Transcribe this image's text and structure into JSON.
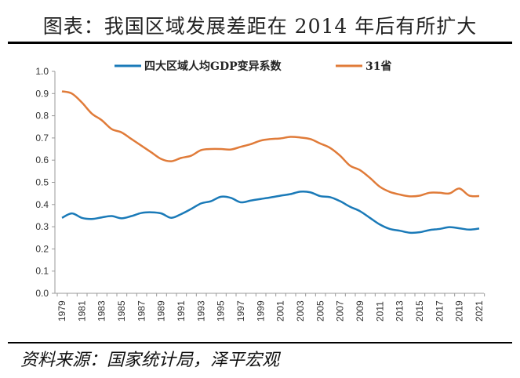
{
  "title": "图表：我国区域发展差距在 2014 年后有所扩大",
  "source": "资料来源：国家统计局，泽平宏观",
  "chart_data": {
    "type": "line",
    "title": "",
    "xlabel": "",
    "ylabel": "",
    "ylim": [
      0,
      1.0
    ],
    "yticks": [
      "0.0",
      "0.1",
      "0.2",
      "0.3",
      "0.4",
      "0.5",
      "0.6",
      "0.7",
      "0.8",
      "0.9",
      "1.0"
    ],
    "grid": false,
    "legend": "top",
    "x": [
      1979,
      1980,
      1981,
      1982,
      1983,
      1984,
      1985,
      1986,
      1987,
      1988,
      1989,
      1990,
      1991,
      1992,
      1993,
      1994,
      1995,
      1996,
      1997,
      1998,
      1999,
      2000,
      2001,
      2002,
      2003,
      2004,
      2005,
      2006,
      2007,
      2008,
      2009,
      2010,
      2011,
      2012,
      2013,
      2014,
      2015,
      2016,
      2017,
      2018,
      2019,
      2020,
      2021
    ],
    "xticks": [
      "1979",
      "1981",
      "1983",
      "1985",
      "1987",
      "1989",
      "1991",
      "1993",
      "1995",
      "1997",
      "1999",
      "2001",
      "2003",
      "2005",
      "2007",
      "2009",
      "2011",
      "2013",
      "2015",
      "2017",
      "2019",
      "2021"
    ],
    "series": [
      {
        "name": "四大区域人均GDP变异系数",
        "color": "#1a7ab8",
        "values": [
          0.34,
          0.36,
          0.34,
          0.335,
          0.342,
          0.348,
          0.338,
          0.348,
          0.362,
          0.365,
          0.36,
          0.34,
          0.357,
          0.38,
          0.405,
          0.415,
          0.435,
          0.43,
          0.41,
          0.418,
          0.425,
          0.432,
          0.44,
          0.447,
          0.458,
          0.455,
          0.438,
          0.433,
          0.415,
          0.39,
          0.37,
          0.34,
          0.31,
          0.29,
          0.282,
          0.273,
          0.275,
          0.285,
          0.29,
          0.298,
          0.293,
          0.287,
          0.292
        ]
      },
      {
        "name": "31省",
        "color": "#e07b39",
        "values": [
          0.91,
          0.9,
          0.86,
          0.81,
          0.78,
          0.74,
          0.725,
          0.695,
          0.665,
          0.635,
          0.605,
          0.595,
          0.61,
          0.62,
          0.645,
          0.65,
          0.65,
          0.648,
          0.66,
          0.672,
          0.688,
          0.695,
          0.698,
          0.705,
          0.702,
          0.695,
          0.675,
          0.655,
          0.62,
          0.575,
          0.555,
          0.52,
          0.48,
          0.457,
          0.445,
          0.437,
          0.44,
          0.453,
          0.453,
          0.45,
          0.472,
          0.44,
          0.438
        ]
      }
    ]
  }
}
